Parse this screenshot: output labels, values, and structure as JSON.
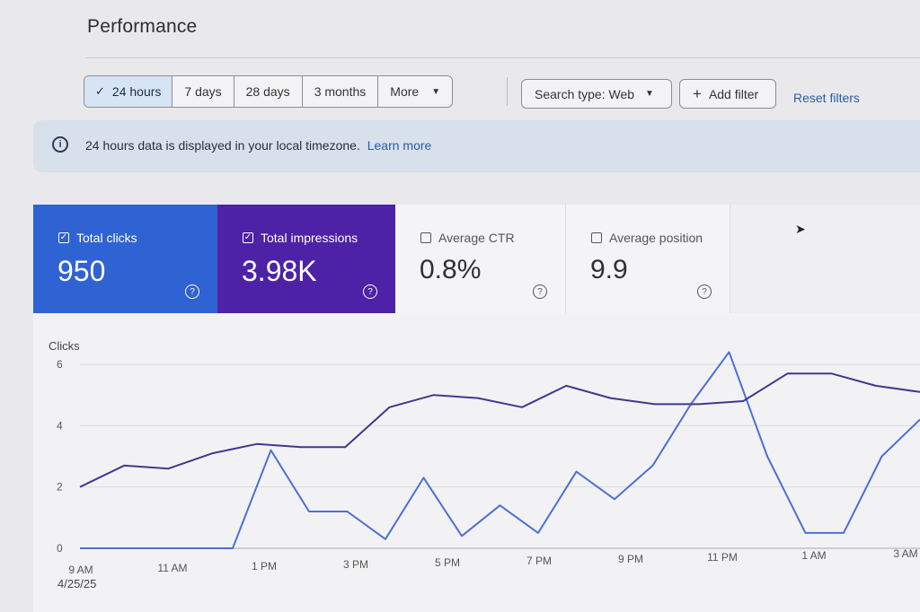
{
  "page": {
    "title": "Performance"
  },
  "date_range": {
    "options": [
      "24 hours",
      "7 days",
      "28 days",
      "3 months",
      "More"
    ],
    "selected": "24 hours"
  },
  "filters": {
    "search_type": "Search type: Web",
    "add_filter": "Add filter",
    "reset": "Reset filters"
  },
  "banner": {
    "message": "24 hours data is displayed in your local timezone.",
    "link": "Learn more"
  },
  "metrics": [
    {
      "label": "Total clicks",
      "value": "950",
      "checked": true,
      "color": "#2f62d3"
    },
    {
      "label": "Total impressions",
      "value": "3.98K",
      "checked": true,
      "color": "#4d22a6"
    },
    {
      "label": "Average CTR",
      "value": "0.8%",
      "checked": false
    },
    {
      "label": "Average position",
      "value": "9.9",
      "checked": false
    }
  ],
  "chart_data": {
    "type": "line",
    "ylabel": "Clicks",
    "ylim": [
      0,
      6
    ],
    "yticks": [
      "0",
      "2",
      "4",
      "6"
    ],
    "x_tick_labels": [
      "9 AM",
      "11 AM",
      "1 PM",
      "3 PM",
      "5 PM",
      "7 PM",
      "9 PM",
      "11 PM",
      "1 AM",
      "3 AM"
    ],
    "x_date_label": "4/25/25",
    "grid": true,
    "series": [
      {
        "color": "#4d6fd6",
        "values": [
          0,
          0,
          0,
          0,
          0,
          3.2,
          1.2,
          1.2,
          0.3,
          2.3,
          0.4,
          1.4,
          0.5,
          2.5,
          1.6,
          2.7,
          4.7,
          6.4,
          3.0,
          0.5,
          0.5,
          3.0,
          4.2
        ]
      },
      {
        "color": "#3e3a8c",
        "values": [
          2.0,
          2.7,
          2.6,
          3.1,
          3.4,
          3.3,
          3.3,
          4.6,
          5.0,
          4.9,
          4.6,
          5.3,
          4.9,
          4.7,
          4.7,
          4.8,
          5.7,
          5.7,
          5.3,
          5.1
        ]
      }
    ]
  }
}
